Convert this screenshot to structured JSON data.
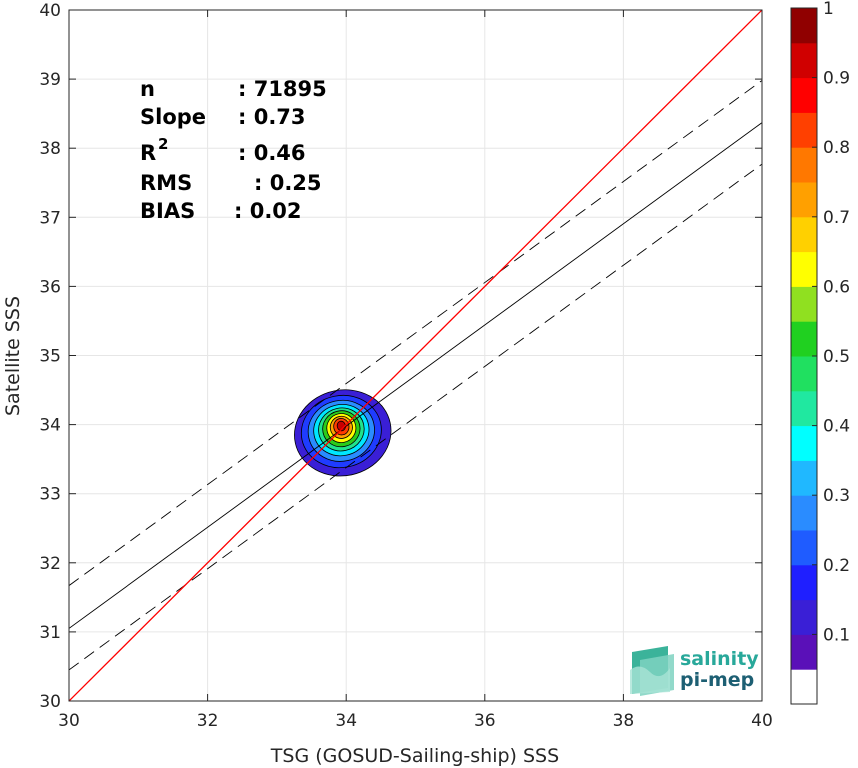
{
  "chart_data": {
    "type": "scatter",
    "xlabel": "TSG (GOSUD-Sailing-ship) SSS",
    "ylabel": "Satellite SSS",
    "xlim": [
      30,
      40
    ],
    "ylim": [
      30,
      40
    ],
    "xticks": [
      "30",
      "32",
      "34",
      "36",
      "38",
      "40"
    ],
    "yticks": [
      "30",
      "31",
      "32",
      "33",
      "34",
      "35",
      "36",
      "37",
      "38",
      "39",
      "40"
    ],
    "grid": true,
    "stats": [
      {
        "label": "n",
        "value": ": 71895"
      },
      {
        "label": "Slope",
        "value": ": 0.73"
      },
      {
        "label": "R",
        "sup": "2",
        "value": ": 0.46"
      },
      {
        "label": "RMS",
        "value": ": 0.25"
      },
      {
        "label": "BIAS",
        "value": ": 0.02"
      }
    ],
    "identity_line": {
      "x": [
        30,
        40
      ],
      "y": [
        30,
        40
      ],
      "color": "#ff0000"
    },
    "fit_line": {
      "x": [
        30,
        40
      ],
      "y": [
        31.05,
        38.37
      ],
      "color": "#000000"
    },
    "band_upper": {
      "x": [
        30,
        40
      ],
      "y": [
        31.67,
        38.98
      ]
    },
    "band_lower": {
      "x": [
        30,
        40
      ],
      "y": [
        30.45,
        37.77
      ]
    },
    "density_contours": [
      {
        "level": 0.05,
        "color": "#3a1fd6",
        "cx": 33.95,
        "cy": 33.88,
        "rx": 0.7,
        "ry": 0.62
      },
      {
        "level": 0.15,
        "color": "#1f3cff",
        "cx": 33.93,
        "cy": 33.9,
        "rx": 0.58,
        "ry": 0.52
      },
      {
        "level": 0.25,
        "color": "#2a8cff",
        "cx": 33.93,
        "cy": 33.91,
        "rx": 0.48,
        "ry": 0.44
      },
      {
        "level": 0.35,
        "color": "#00e6ff",
        "cx": 33.93,
        "cy": 33.92,
        "rx": 0.4,
        "ry": 0.37
      },
      {
        "level": 0.45,
        "color": "#20e38c",
        "cx": 33.93,
        "cy": 33.93,
        "rx": 0.33,
        "ry": 0.31
      },
      {
        "level": 0.55,
        "color": "#2bcc1a",
        "cx": 33.93,
        "cy": 33.94,
        "rx": 0.27,
        "ry": 0.26
      },
      {
        "level": 0.65,
        "color": "#ffff00",
        "cx": 33.93,
        "cy": 33.95,
        "rx": 0.21,
        "ry": 0.21
      },
      {
        "level": 0.75,
        "color": "#ffa000",
        "cx": 33.93,
        "cy": 33.96,
        "rx": 0.16,
        "ry": 0.16
      },
      {
        "level": 0.85,
        "color": "#ff3c00",
        "cx": 33.93,
        "cy": 33.97,
        "rx": 0.11,
        "ry": 0.12
      },
      {
        "level": 0.95,
        "color": "#c80000",
        "cx": 33.93,
        "cy": 33.98,
        "rx": 0.06,
        "ry": 0.07
      }
    ],
    "colorbar": {
      "range": [
        0,
        1
      ],
      "ticks": [
        "0.1",
        "0.2",
        "0.3",
        "0.4",
        "0.5",
        "0.6",
        "0.7",
        "0.8",
        "0.9",
        "1"
      ],
      "colors": [
        "#ffffff",
        "#5a10b8",
        "#3a1fd6",
        "#1f1fff",
        "#1f5cff",
        "#2a8cff",
        "#20b8ff",
        "#00ffff",
        "#20e8a0",
        "#20e060",
        "#20d020",
        "#90e020",
        "#ffff00",
        "#ffd000",
        "#ffa000",
        "#ff7800",
        "#ff4000",
        "#ff0000",
        "#d00000",
        "#900000"
      ]
    }
  },
  "logo": {
    "line1": "salinity",
    "line2": "pi-mep"
  }
}
